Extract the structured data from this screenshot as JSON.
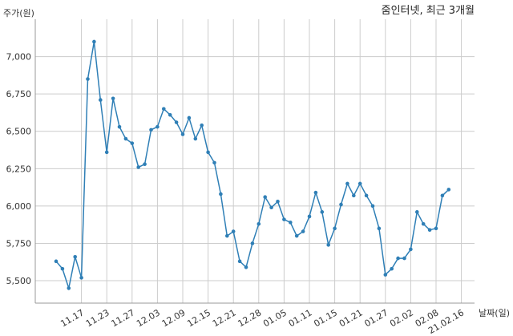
{
  "chart_data": {
    "type": "line",
    "title": "줌인터넷, 최근 3개월",
    "ylabel": "주가(원)",
    "xlabel": "날짜(일)",
    "ylim": [
      5350,
      7250
    ],
    "yticks": [
      5500,
      5750,
      6000,
      6250,
      6500,
      6750,
      7000
    ],
    "ytick_labels": [
      "5,500",
      "5,750",
      "6,000",
      "6,250",
      "6,500",
      "6,750",
      "7,000"
    ],
    "xtick_labels": [
      "11.17",
      "11.23",
      "11.27",
      "12.03",
      "12.09",
      "12.15",
      "12.21",
      "12.28",
      "01.05",
      "01.11",
      "01.15",
      "01.21",
      "01.27",
      "02.02",
      "02.08",
      "21.02.16"
    ],
    "xtick_index": [
      4,
      8,
      12,
      16,
      20,
      24,
      28,
      32,
      36,
      40,
      44,
      48,
      52,
      56,
      60,
      64
    ],
    "grid": true,
    "series": [
      {
        "values": [
          5630,
          5580,
          5450,
          5660,
          5520,
          6850,
          7100,
          6710,
          6360,
          6720,
          6530,
          6450,
          6420,
          6260,
          6280,
          6510,
          6530,
          6650,
          6610,
          6560,
          6480,
          6590,
          6450,
          6540,
          6360,
          6290,
          6080,
          5800,
          5830,
          5630,
          5590,
          5750,
          5880,
          6060,
          5990,
          6030,
          5910,
          5890,
          5800,
          5830,
          5930,
          6090,
          5960,
          5740,
          5850,
          6010,
          6150,
          6070,
          6150,
          6070,
          6000,
          5850,
          5540,
          5580,
          5650,
          5650,
          5710,
          5960,
          5880,
          5840,
          5850,
          6070,
          6110
        ]
      }
    ],
    "colors": {
      "line": "#2f7fb6",
      "grid": "#cccccc",
      "axis": "#999999"
    }
  }
}
